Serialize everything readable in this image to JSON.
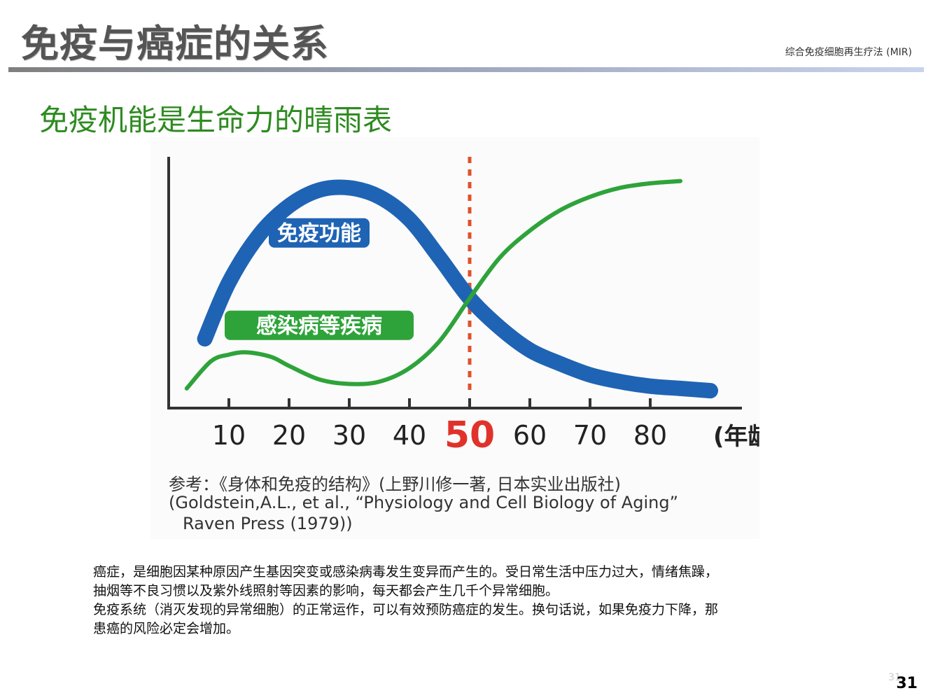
{
  "header": {
    "title": "免疫与癌症的关系",
    "right_label": "综合免疫细胞再生疗法 (MIR)"
  },
  "subtitle": "免疫机能是生命力的晴雨表",
  "chart_data": {
    "type": "line",
    "x_ticks": [
      "10",
      "20",
      "30",
      "40",
      "50",
      "60",
      "70",
      "80"
    ],
    "x_unit_label": "(年龄)",
    "highlight_x": 50,
    "xlim": [
      0,
      90
    ],
    "ylim": [
      0,
      100
    ],
    "series": [
      {
        "name": "免疫功能",
        "color": "#1f63b4",
        "x": [
          6,
          10,
          15,
          20,
          25,
          30,
          35,
          40,
          45,
          50,
          55,
          60,
          65,
          70,
          75,
          80,
          85,
          90
        ],
        "y": [
          27,
          52,
          73,
          86,
          93,
          94,
          90,
          80,
          63,
          45,
          32,
          22,
          16,
          11,
          8,
          6,
          5,
          4
        ]
      },
      {
        "name": "感染病等疾病",
        "color": "#2ea33a",
        "x": [
          3,
          7,
          10,
          13,
          17,
          20,
          25,
          30,
          35,
          40,
          45,
          50,
          55,
          60,
          65,
          70,
          75,
          80,
          85
        ],
        "y": [
          5,
          17,
          20,
          21,
          19,
          15,
          9,
          7,
          8,
          14,
          26,
          45,
          63,
          75,
          84,
          90,
          94,
          96,
          97
        ]
      }
    ],
    "highlight_color": "#e0522a",
    "highlight_label_color": "#e0322a"
  },
  "references": [
    "参考：《身体和免疫的结构》(上野川修一著, 日本实业出版社)",
    "(Goldstein,A.L., et al., “Physiology and Cell Biology of Aging”",
    "Raven Press (1979))"
  ],
  "body_paragraphs": [
    "癌症，是细胞因某种原因产生基因突变或感染病毒发生变异而产生的。受日常生活中压力过大，情绪焦躁，",
    "抽烟等不良习惯以及紫外线照射等因素的影响，每天都会产生几千个异常细胞。",
    "免疫系统（消灭发现的异常细胞）的正常运作，可以有效预防癌症的发生。换句话说，如果免疫力下降，那",
    "患癌的风险必定会增加。"
  ],
  "page": {
    "number": "31",
    "ghost": "31"
  }
}
